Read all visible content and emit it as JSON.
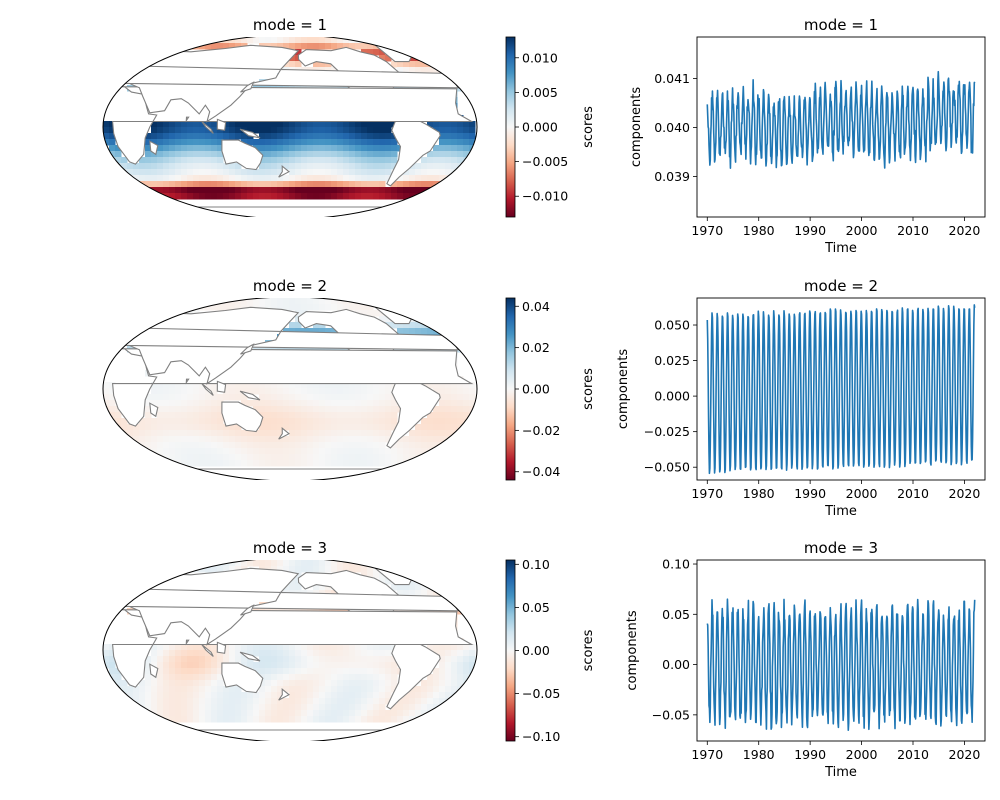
{
  "colormap": [
    "#67001f",
    "#b2182b",
    "#d6604d",
    "#f4a582",
    "#fddbc7",
    "#f7f7f7",
    "#d1e5f0",
    "#92c5de",
    "#4393c3",
    "#2166ac",
    "#053061"
  ],
  "colors": {
    "line": "#1f77b4",
    "coast": "#808080",
    "land": "#ffffff"
  },
  "chart_data": [
    {
      "type": "heatmap",
      "title": "mode = 1",
      "colorbar_label": "scores",
      "clim": [
        -0.013,
        0.013
      ],
      "colorbar_ticks": [
        -0.01,
        -0.005,
        0.0,
        0.005,
        0.01
      ],
      "colorbar_ticklabels": [
        "−0.010",
        "−0.005",
        "0.000",
        "0.005",
        "0.010"
      ]
    },
    {
      "type": "line",
      "title": "mode = 1",
      "xlabel": "Time",
      "ylabel": "components",
      "xlim": [
        1968,
        2024
      ],
      "ylim": [
        0.03817,
        0.04185
      ],
      "xticks": [
        1970,
        1980,
        1990,
        2000,
        2010,
        2020
      ],
      "yticks": [
        0.039,
        0.04,
        0.041
      ],
      "yticklabels": [
        "0.039",
        "0.040",
        "0.041"
      ],
      "series": [
        {
          "mean_start": 0.03995,
          "mean_end": 0.0402,
          "amplitude": 0.0008,
          "noise": 0.0002,
          "x_start": 1970,
          "x_end": 2022
        }
      ]
    },
    {
      "type": "heatmap",
      "title": "mode = 2",
      "colorbar_label": "scores",
      "clim": [
        -0.044,
        0.044
      ],
      "colorbar_ticks": [
        -0.04,
        -0.02,
        0.0,
        0.02,
        0.04
      ],
      "colorbar_ticklabels": [
        "−0.04",
        "−0.02",
        "0.00",
        "0.02",
        "0.04"
      ]
    },
    {
      "type": "line",
      "title": "mode = 2",
      "xlabel": "Time",
      "ylabel": "components",
      "xlim": [
        1968,
        2024
      ],
      "ylim": [
        -0.059,
        0.069
      ],
      "xticks": [
        1970,
        1980,
        1990,
        2000,
        2010,
        2020
      ],
      "yticks": [
        -0.05,
        -0.025,
        0.0,
        0.025,
        0.05
      ],
      "yticklabels": [
        "−0.050",
        "−0.025",
        "0.000",
        "0.025",
        "0.050"
      ],
      "series": [
        {
          "mean_start": 0.002,
          "mean_end": 0.008,
          "amplitude": 0.056,
          "noise": 0.002,
          "x_start": 1970,
          "x_end": 2022
        }
      ]
    },
    {
      "type": "heatmap",
      "title": "mode = 3",
      "colorbar_label": "scores",
      "clim": [
        -0.105,
        0.105
      ],
      "colorbar_ticks": [
        -0.1,
        -0.05,
        0.0,
        0.05,
        0.1
      ],
      "colorbar_ticklabels": [
        "−0.10",
        "−0.05",
        "0.00",
        "0.05",
        "0.10"
      ]
    },
    {
      "type": "line",
      "title": "mode = 3",
      "xlabel": "Time",
      "ylabel": "components",
      "xlim": [
        1968,
        2024
      ],
      "ylim": [
        -0.076,
        0.104
      ],
      "xticks": [
        1970,
        1980,
        1990,
        2000,
        2010,
        2020
      ],
      "yticks": [
        -0.05,
        0.0,
        0.05,
        0.1
      ],
      "yticklabels": [
        "−0.05",
        "0.00",
        "0.05",
        "0.10"
      ],
      "series": [
        {
          "mean_start": 0.0,
          "mean_end": 0.0,
          "amplitude": 0.055,
          "noise": 0.012,
          "x_start": 1970,
          "x_end": 2022
        }
      ]
    }
  ]
}
